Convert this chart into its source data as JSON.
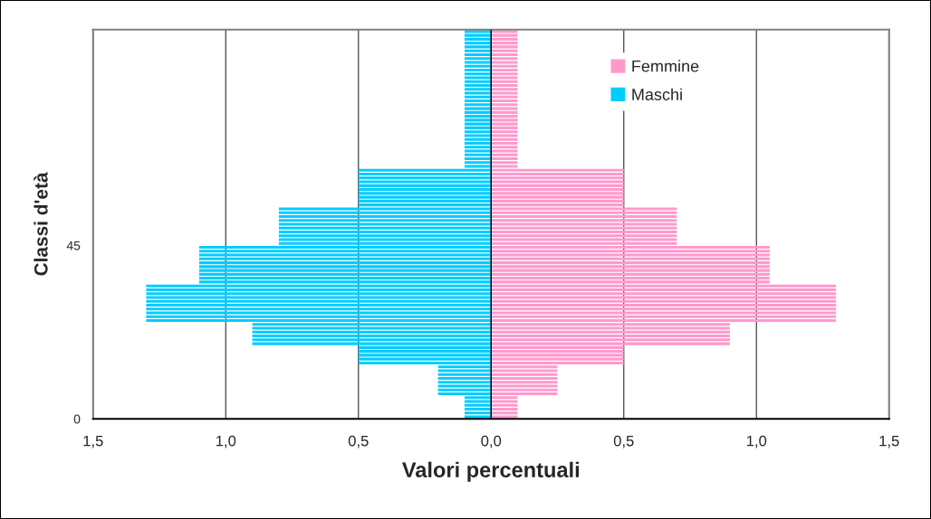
{
  "chart_data": {
    "type": "bar",
    "orientation": "horizontal",
    "xlabel": "Valori percentuali",
    "ylabel": "Classi d'età",
    "categories": [
      null,
      null,
      null,
      null,
      null,
      null,
      null,
      null,
      null,
      null,
      null,
      null,
      null,
      null,
      null,
      null,
      null,
      null,
      null,
      null,
      null,
      null,
      null,
      null,
      null,
      null,
      null,
      null,
      null,
      null,
      null,
      null,
      null,
      null,
      null,
      null,
      null,
      null,
      null,
      null,
      null,
      null,
      null,
      null,
      null,
      null,
      null,
      null,
      null,
      null,
      null,
      null,
      null,
      null,
      null,
      "45",
      null,
      null,
      null,
      null,
      null,
      null,
      null,
      null,
      null,
      null,
      null,
      null,
      null,
      null,
      null,
      null,
      null,
      null,
      null,
      null,
      null,
      null,
      null,
      null,
      null,
      null,
      null,
      null,
      null,
      null,
      null,
      null,
      null,
      null,
      null,
      null,
      null,
      null,
      null,
      null,
      null,
      null,
      null,
      null,
      "0"
    ],
    "series": [
      {
        "name": "Femmine",
        "color": "#ff99cc",
        "values": [
          0.1,
          0.1,
          0.1,
          0.1,
          0.1,
          0.1,
          0.1,
          0.1,
          0.1,
          0.1,
          0.1,
          0.1,
          0.1,
          0.1,
          0.1,
          0.1,
          0.1,
          0.1,
          0.1,
          0.1,
          0.1,
          0.1,
          0.1,
          0.1,
          0.1,
          0.1,
          0.1,
          0.1,
          0.1,
          0.1,
          0.1,
          0.1,
          0.1,
          0.1,
          0.1,
          0.1,
          0.5,
          0.5,
          0.5,
          0.5,
          0.5,
          0.5,
          0.5,
          0.5,
          0.5,
          0.5,
          0.7,
          0.7,
          0.7,
          0.7,
          0.7,
          0.7,
          0.7,
          0.7,
          0.7,
          0.7,
          1.05,
          1.05,
          1.05,
          1.05,
          1.05,
          1.05,
          1.05,
          1.05,
          1.05,
          1.05,
          1.3,
          1.3,
          1.3,
          1.3,
          1.3,
          1.3,
          1.3,
          1.3,
          1.3,
          1.3,
          0.9,
          0.9,
          0.9,
          0.9,
          0.9,
          0.9,
          0.5,
          0.5,
          0.5,
          0.5,
          0.5,
          0.25,
          0.25,
          0.25,
          0.25,
          0.25,
          0.25,
          0.25,
          0.25,
          0.1,
          0.1,
          0.1,
          0.1,
          0.1,
          0.1
        ]
      },
      {
        "name": "Maschi",
        "color": "#00ccff",
        "values": [
          -0.1,
          -0.1,
          -0.1,
          -0.1,
          -0.1,
          -0.1,
          -0.1,
          -0.1,
          -0.1,
          -0.1,
          -0.1,
          -0.1,
          -0.1,
          -0.1,
          -0.1,
          -0.1,
          -0.1,
          -0.1,
          -0.1,
          -0.1,
          -0.1,
          -0.1,
          -0.1,
          -0.1,
          -0.1,
          -0.1,
          -0.1,
          -0.1,
          -0.1,
          -0.1,
          -0.1,
          -0.1,
          -0.1,
          -0.1,
          -0.1,
          -0.1,
          -0.5,
          -0.5,
          -0.5,
          -0.5,
          -0.5,
          -0.5,
          -0.5,
          -0.5,
          -0.5,
          -0.5,
          -0.8,
          -0.8,
          -0.8,
          -0.8,
          -0.8,
          -0.8,
          -0.8,
          -0.8,
          -0.8,
          -0.8,
          -1.1,
          -1.1,
          -1.1,
          -1.1,
          -1.1,
          -1.1,
          -1.1,
          -1.1,
          -1.1,
          -1.1,
          -1.3,
          -1.3,
          -1.3,
          -1.3,
          -1.3,
          -1.3,
          -1.3,
          -1.3,
          -1.3,
          -1.3,
          -0.9,
          -0.9,
          -0.9,
          -0.9,
          -0.9,
          -0.9,
          -0.5,
          -0.5,
          -0.5,
          -0.5,
          -0.5,
          -0.2,
          -0.2,
          -0.2,
          -0.2,
          -0.2,
          -0.2,
          -0.2,
          -0.2,
          -0.1,
          -0.1,
          -0.1,
          -0.1,
          -0.1,
          -0.1
        ]
      }
    ],
    "xlim": [
      -1.5,
      1.5
    ],
    "xticks": [
      {
        "value": -1.5,
        "label": "1,5"
      },
      {
        "value": -1.0,
        "label": "1,0"
      },
      {
        "value": -0.5,
        "label": "0,5"
      },
      {
        "value": 0,
        "label": "0,0"
      },
      {
        "value": 0.5,
        "label": "0,5"
      },
      {
        "value": 1.0,
        "label": "1,0"
      },
      {
        "value": 1.5,
        "label": "1,5"
      }
    ],
    "grid": "x",
    "legend": "top right",
    "stacked": true
  }
}
